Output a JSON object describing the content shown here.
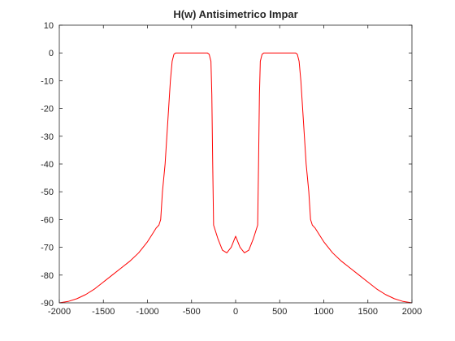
{
  "chart_data": {
    "type": "line",
    "title": "H(w) Antisimetrico Impar",
    "xlabel": "",
    "ylabel": "",
    "xlim": [
      -2000,
      2000
    ],
    "ylim": [
      -90,
      10
    ],
    "xticks": [
      -2000,
      -1500,
      -1000,
      -500,
      0,
      500,
      1000,
      1500,
      2000
    ],
    "yticks": [
      10,
      0,
      -10,
      -20,
      -30,
      -40,
      -50,
      -60,
      -70,
      -80,
      -90
    ],
    "grid": false,
    "legend": "none",
    "series": [
      {
        "color": "#ff0000",
        "x": [
          -2000,
          -1900,
          -1800,
          -1700,
          -1600,
          -1500,
          -1400,
          -1300,
          -1200,
          -1100,
          -1000,
          -950,
          -900,
          -870,
          -850,
          -830,
          -800,
          -780,
          -760,
          -740,
          -720,
          -700,
          -680,
          -650,
          -500,
          -350,
          -320,
          -300,
          -280,
          -270,
          -260,
          -250,
          -200,
          -150,
          -100,
          -50,
          0,
          50,
          100,
          150,
          200,
          250,
          260,
          270,
          280,
          300,
          320,
          350,
          500,
          650,
          680,
          700,
          720,
          740,
          760,
          780,
          800,
          830,
          850,
          870,
          900,
          950,
          1000,
          1100,
          1200,
          1300,
          1400,
          1500,
          1600,
          1700,
          1800,
          1900,
          2000
        ],
        "y": [
          -90,
          -89.5,
          -88.5,
          -87,
          -85,
          -82.5,
          -80,
          -77.5,
          -75,
          -72,
          -68,
          -65.5,
          -63,
          -62,
          -60,
          -50,
          -40,
          -30,
          -20,
          -10,
          -3,
          -0.5,
          0,
          0,
          0,
          0,
          0,
          -0.5,
          -3,
          -15,
          -40,
          -62,
          -67,
          -71,
          -72,
          -70,
          -66,
          -70,
          -72,
          -71,
          -67,
          -62,
          -40,
          -15,
          -3,
          -0.5,
          0,
          0,
          0,
          0,
          0,
          -0.5,
          -3,
          -10,
          -20,
          -30,
          -40,
          -50,
          -60,
          -62,
          -63,
          -65.5,
          -68,
          -72,
          -75,
          -77.5,
          -80,
          -82.5,
          -85,
          -87,
          -88.5,
          -89.5,
          -90
        ]
      }
    ]
  }
}
